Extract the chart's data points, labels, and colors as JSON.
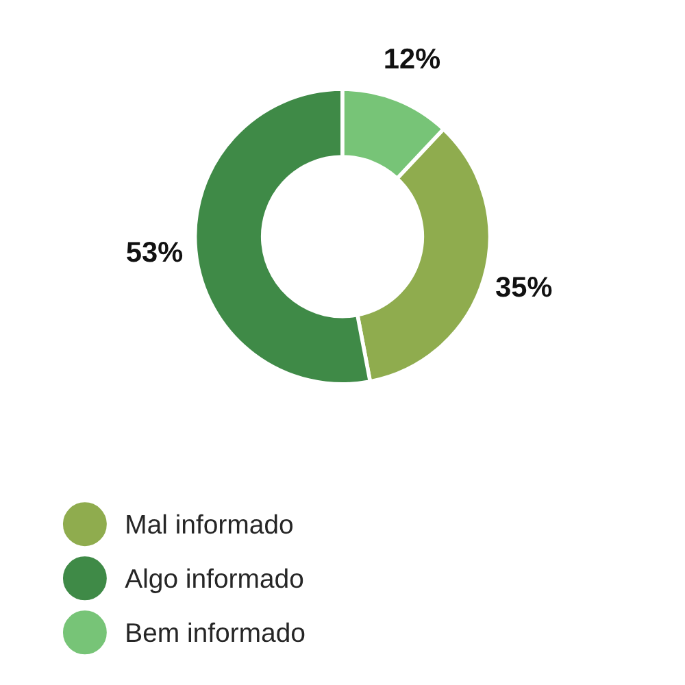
{
  "chart_data": {
    "type": "donut",
    "categories": [
      "Mal informado",
      "Algo informado",
      "Bem informado"
    ],
    "values": [
      35,
      53,
      12
    ],
    "colors": [
      "#8fac4e",
      "#3f8a47",
      "#77c477"
    ],
    "value_labels": [
      "35%",
      "53%",
      "12%"
    ],
    "legend": "bottom left"
  }
}
